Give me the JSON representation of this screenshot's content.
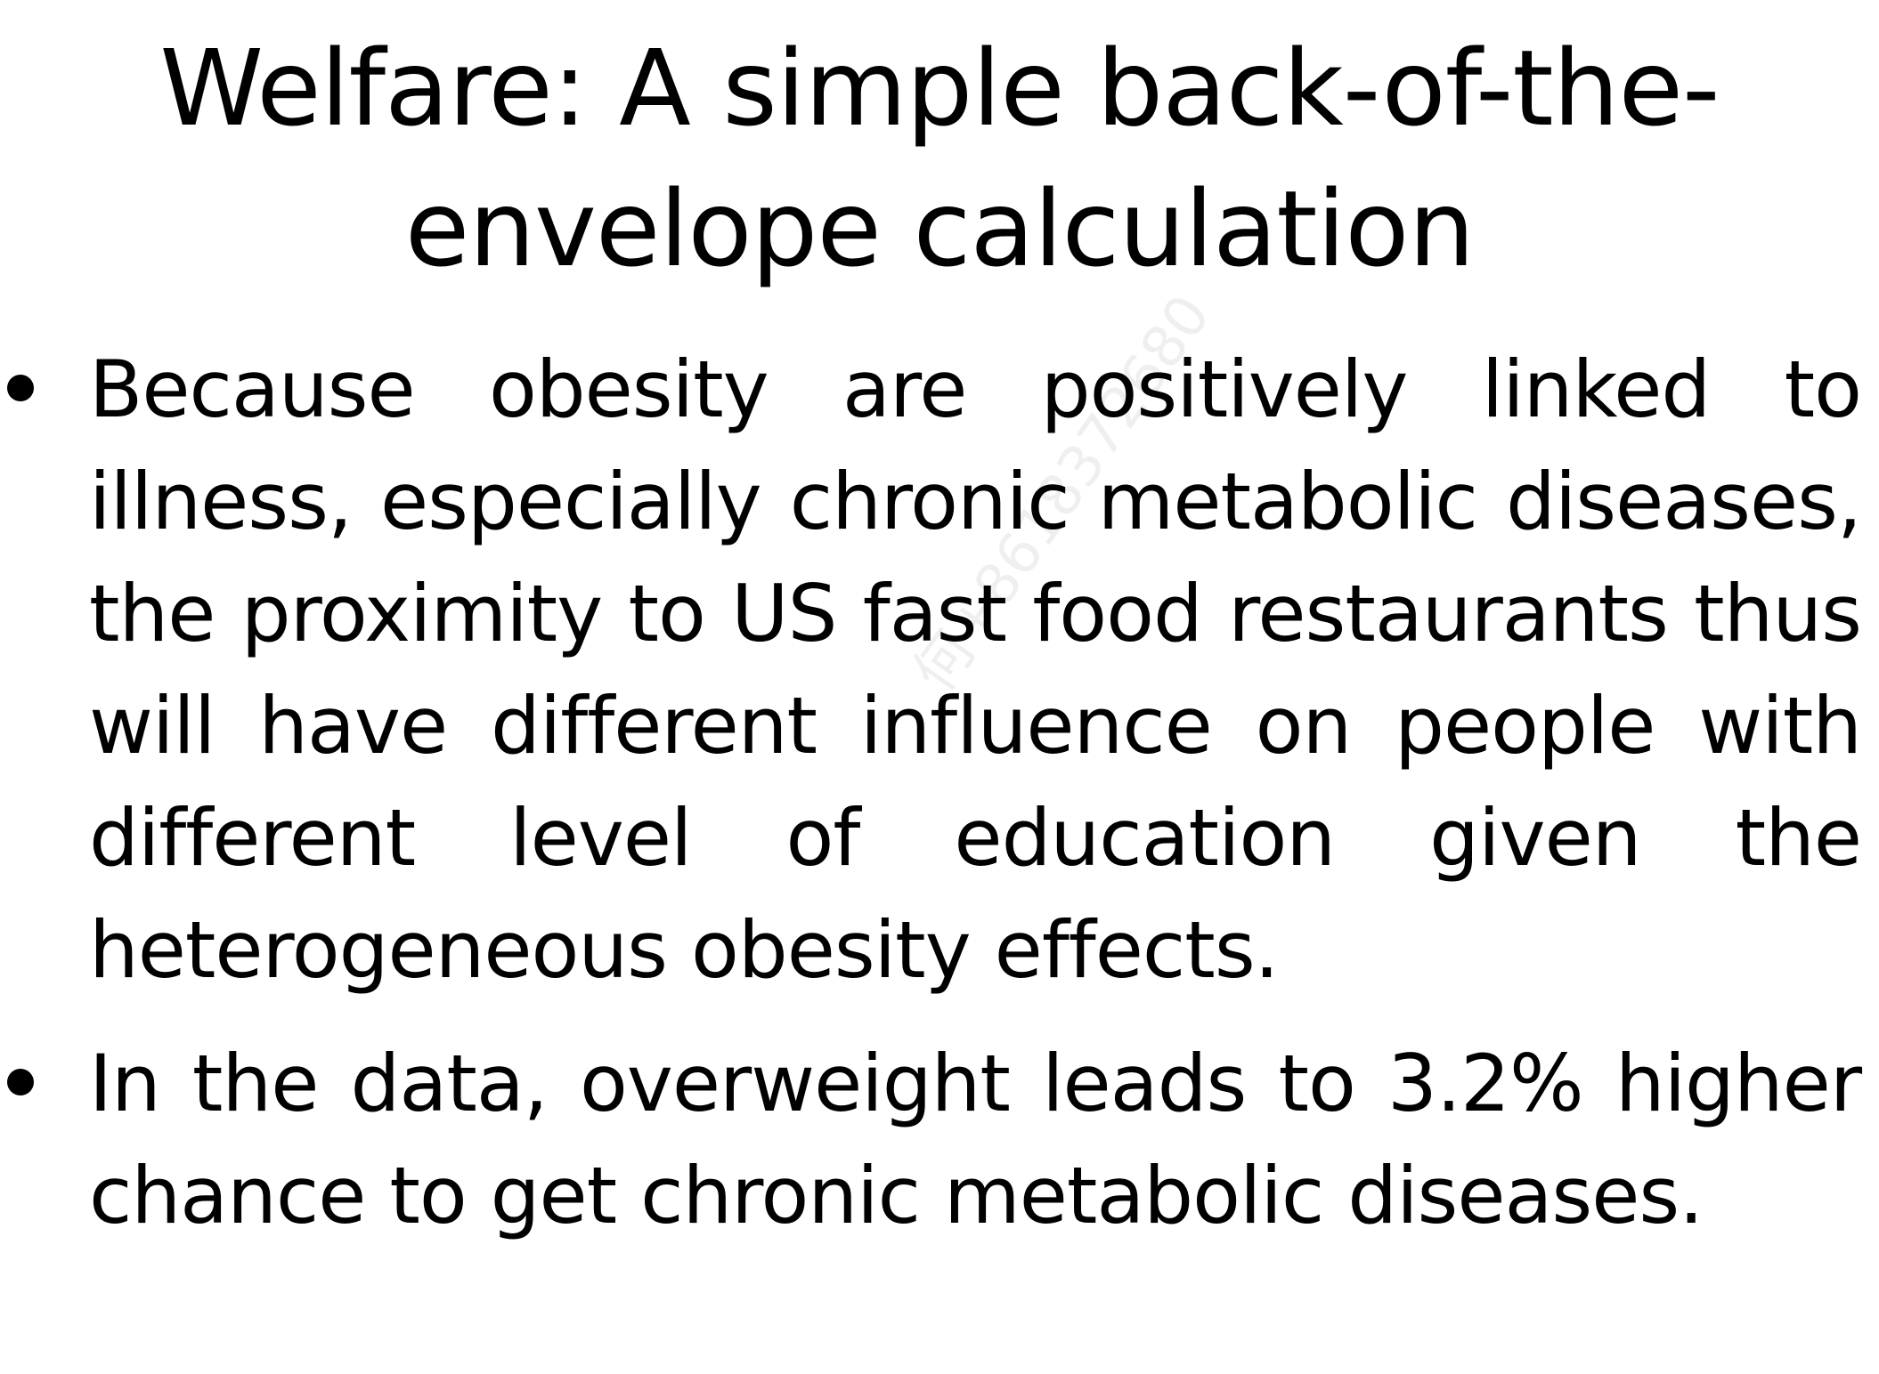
{
  "slide": {
    "title": "Welfare:  A simple back-of-the-envelope calculation",
    "bullets": [
      "Because obesity are positively linked to illness, especially chronic metabolic diseases, the proximity to US fast food restaurants thus will have different influence on people with different level of education given the heterogeneous obesity effects.",
      "In the data, overweight leads to 3.2% higher chance to get chronic metabolic diseases."
    ],
    "watermark": "何+8618372680"
  }
}
